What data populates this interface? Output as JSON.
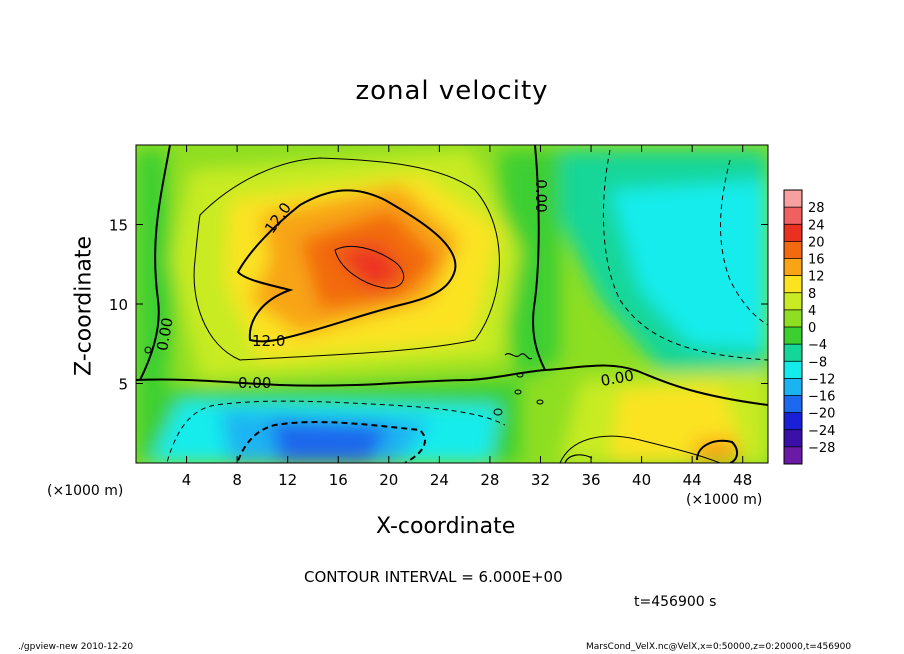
{
  "chart_data": {
    "type": "contour",
    "title": "zonal velocity",
    "xlabel": "X-coordinate",
    "ylabel": "Z-coordinate",
    "x_unit": "(×1000 m)",
    "y_unit": "(×1000 m)",
    "xlim": [
      0,
      50
    ],
    "ylim": [
      0,
      20
    ],
    "x_ticks": [
      4,
      8,
      12,
      16,
      20,
      24,
      28,
      32,
      36,
      40,
      44,
      48
    ],
    "y_ticks": [
      5,
      10,
      15
    ],
    "colorbar": {
      "labels": [
        "28",
        "24",
        "20",
        "16",
        "12",
        "8",
        "4",
        "0",
        "−4",
        "−8",
        "−12",
        "−16",
        "−20",
        "−24",
        "−28"
      ],
      "colors": [
        "#f7a0a0",
        "#f06060",
        "#ec3020",
        "#f26a10",
        "#f8a414",
        "#fbe320",
        "#c8eb24",
        "#8ede22",
        "#3ccf30",
        "#14d698",
        "#14ecec",
        "#1ab4f2",
        "#1c68ee",
        "#1a20d8",
        "#3a10a8",
        "#6a1aa6"
      ]
    },
    "contour_labels": [
      "12.0",
      "12.0",
      "0.00",
      "0.00",
      "0.00",
      "0.00"
    ],
    "contour_interval_text": "CONTOUR INTERVAL = 6.000E+00",
    "time_text": "t=456900 s"
  },
  "footer": {
    "left": "./gpview-new  2010-12-20",
    "right": "MarsCond_VelX.nc@VelX,x=0:50000,z=0:20000,t=456900"
  }
}
